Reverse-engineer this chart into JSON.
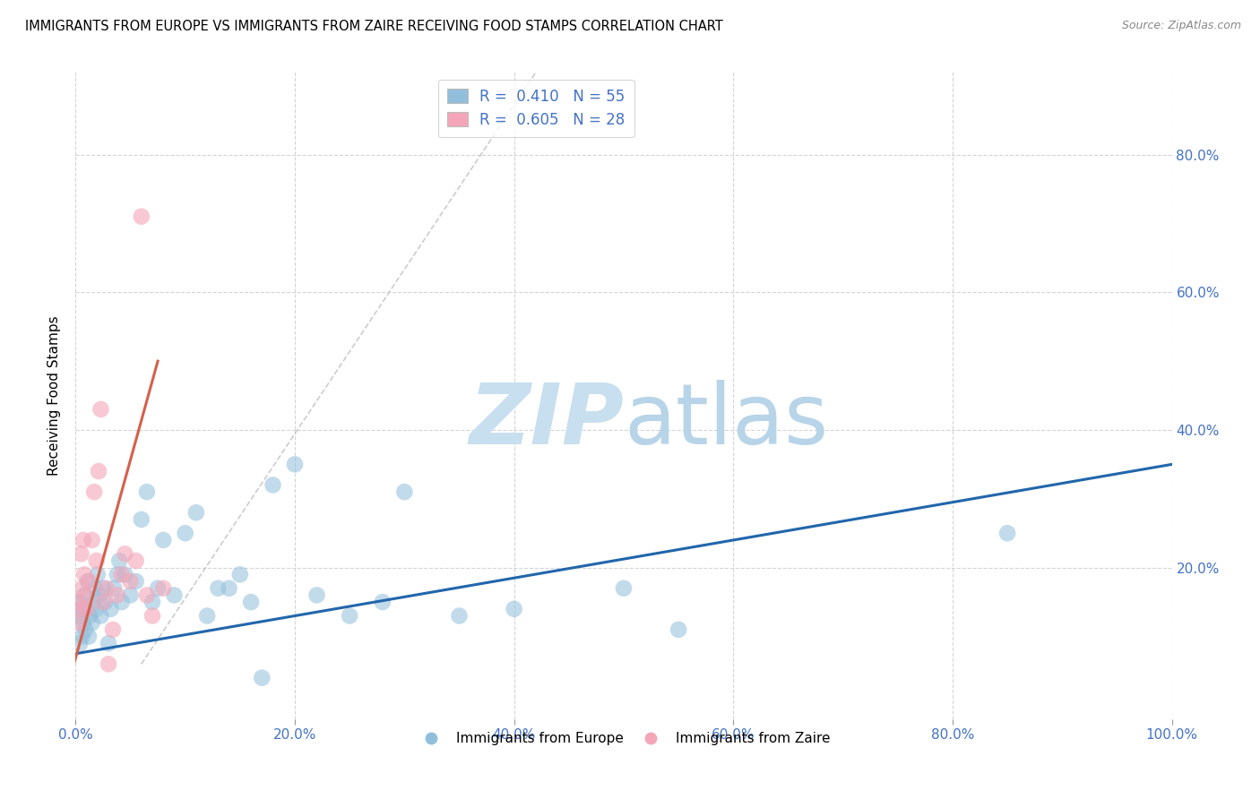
{
  "title": "IMMIGRANTS FROM EUROPE VS IMMIGRANTS FROM ZAIRE RECEIVING FOOD STAMPS CORRELATION CHART",
  "source": "Source: ZipAtlas.com",
  "ylabel": "Receiving Food Stamps",
  "xlim": [
    0,
    1.0
  ],
  "ylim": [
    -0.02,
    0.92
  ],
  "xtick_vals": [
    0.0,
    0.2,
    0.4,
    0.6,
    0.8,
    1.0
  ],
  "xtick_labels": [
    "0.0%",
    "20.0%",
    "40.0%",
    "60.0%",
    "80.0%",
    "100.0%"
  ],
  "ytick_vals": [
    0.2,
    0.4,
    0.6,
    0.8
  ],
  "right_ytick_labels": [
    "20.0%",
    "40.0%",
    "60.0%",
    "80.0%"
  ],
  "legend_r1": "R =  0.410   N = 55",
  "legend_r2": "R =  0.605   N = 28",
  "legend_label1": "Immigrants from Europe",
  "legend_label2": "Immigrants from Zaire",
  "blue_color": "#91bfdb",
  "pink_color": "#f4a6b8",
  "blue_line_color": "#2166ac",
  "pink_line_color": "#d6604d",
  "dashed_line_color": "#c0c0c0",
  "watermark_zip_color": "#c8dff0",
  "watermark_atlas_color": "#b8d4e8",
  "blue_scatter_x": [
    0.002,
    0.003,
    0.004,
    0.005,
    0.006,
    0.007,
    0.008,
    0.009,
    0.01,
    0.011,
    0.012,
    0.013,
    0.015,
    0.016,
    0.018,
    0.019,
    0.02,
    0.022,
    0.023,
    0.025,
    0.027,
    0.03,
    0.032,
    0.035,
    0.038,
    0.04,
    0.042,
    0.045,
    0.05,
    0.055,
    0.06,
    0.065,
    0.07,
    0.075,
    0.08,
    0.09,
    0.1,
    0.11,
    0.12,
    0.13,
    0.14,
    0.15,
    0.16,
    0.18,
    0.2,
    0.22,
    0.25,
    0.28,
    0.3,
    0.35,
    0.4,
    0.5,
    0.55,
    0.85,
    0.17
  ],
  "blue_scatter_y": [
    0.13,
    0.15,
    0.09,
    0.14,
    0.1,
    0.12,
    0.16,
    0.11,
    0.14,
    0.18,
    0.1,
    0.13,
    0.12,
    0.15,
    0.17,
    0.14,
    0.19,
    0.16,
    0.13,
    0.17,
    0.15,
    0.09,
    0.14,
    0.17,
    0.19,
    0.21,
    0.15,
    0.19,
    0.16,
    0.18,
    0.27,
    0.31,
    0.15,
    0.17,
    0.24,
    0.16,
    0.25,
    0.28,
    0.13,
    0.17,
    0.17,
    0.19,
    0.15,
    0.32,
    0.35,
    0.16,
    0.13,
    0.15,
    0.31,
    0.13,
    0.14,
    0.17,
    0.11,
    0.25,
    0.04
  ],
  "pink_scatter_x": [
    0.002,
    0.003,
    0.004,
    0.005,
    0.006,
    0.007,
    0.008,
    0.009,
    0.01,
    0.012,
    0.015,
    0.017,
    0.019,
    0.021,
    0.023,
    0.025,
    0.028,
    0.03,
    0.034,
    0.038,
    0.042,
    0.045,
    0.05,
    0.055,
    0.06,
    0.065,
    0.07,
    0.08
  ],
  "pink_scatter_y": [
    0.15,
    0.12,
    0.14,
    0.22,
    0.17,
    0.24,
    0.19,
    0.16,
    0.14,
    0.18,
    0.24,
    0.31,
    0.21,
    0.34,
    0.43,
    0.15,
    0.17,
    0.06,
    0.11,
    0.16,
    0.19,
    0.22,
    0.18,
    0.21,
    0.71,
    0.16,
    0.13,
    0.17
  ],
  "blue_trend_x": [
    0.0,
    1.0
  ],
  "blue_trend_y": [
    0.075,
    0.35
  ],
  "pink_trend_x": [
    -0.005,
    0.075
  ],
  "pink_trend_y": [
    0.04,
    0.5
  ],
  "dashed_line_x": [
    0.06,
    0.42
  ],
  "dashed_line_y": [
    0.06,
    0.92
  ]
}
